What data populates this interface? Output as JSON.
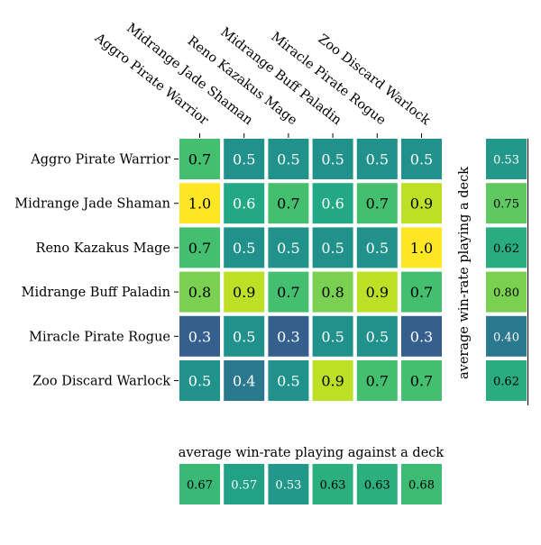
{
  "chart_data": {
    "type": "heatmap",
    "decks": [
      "Aggro Pirate Warrior",
      "Midrange Jade Shaman",
      "Reno Kazakus Mage",
      "Midrange Buff Paladin",
      "Miracle Pirate Rogue",
      "Zoo Discard Warlock"
    ],
    "matrix": [
      [
        0.7,
        0.5,
        0.5,
        0.5,
        0.5,
        0.5
      ],
      [
        1.0,
        0.6,
        0.7,
        0.6,
        0.7,
        0.9
      ],
      [
        0.7,
        0.5,
        0.5,
        0.5,
        0.5,
        1.0
      ],
      [
        0.8,
        0.9,
        0.7,
        0.8,
        0.9,
        0.7
      ],
      [
        0.3,
        0.5,
        0.3,
        0.5,
        0.5,
        0.3
      ],
      [
        0.5,
        0.4,
        0.5,
        0.9,
        0.7,
        0.7
      ]
    ],
    "matrix_labels": [
      [
        "0.7",
        "0.5",
        "0.5",
        "0.5",
        "0.5",
        "0.5"
      ],
      [
        "1.0",
        "0.6",
        "0.7",
        "0.6",
        "0.7",
        "0.9"
      ],
      [
        "0.7",
        "0.5",
        "0.5",
        "0.5",
        "0.5",
        "1.0"
      ],
      [
        "0.8",
        "0.9",
        "0.7",
        "0.8",
        "0.9",
        "0.7"
      ],
      [
        "0.3",
        "0.5",
        "0.3",
        "0.5",
        "0.5",
        "0.3"
      ],
      [
        "0.5",
        "0.4",
        "0.5",
        "0.9",
        "0.7",
        "0.7"
      ]
    ],
    "row_average": {
      "title": "average win-rate playing a deck",
      "values": [
        0.53,
        0.75,
        0.62,
        0.8,
        0.4,
        0.62
      ],
      "labels": [
        "0.53",
        "0.75",
        "0.62",
        "0.80",
        "0.40",
        "0.62"
      ]
    },
    "column_average": {
      "title": "average win-rate playing against a deck",
      "values": [
        0.67,
        0.57,
        0.53,
        0.63,
        0.63,
        0.68
      ],
      "labels": [
        "0.67",
        "0.57",
        "0.53",
        "0.63",
        "0.63",
        "0.68"
      ]
    },
    "colormap": "viridis",
    "value_range": [
      0.0,
      1.0
    ],
    "grid": false,
    "legend": "none"
  }
}
